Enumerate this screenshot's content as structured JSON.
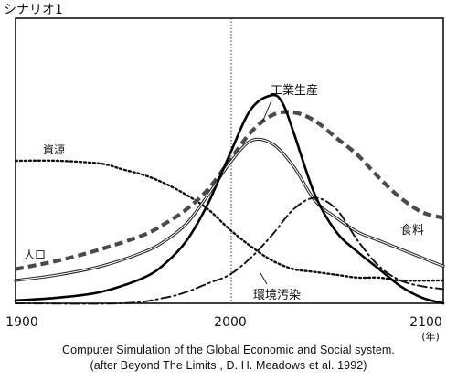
{
  "chart_data": {
    "type": "line",
    "title": "シナリオ1",
    "xlabel": "",
    "ylabel": "",
    "x_unit": "(年)",
    "xlim": [
      1900,
      2100
    ],
    "ylim": [
      0,
      1
    ],
    "x_ticks": [
      "1900",
      "2000",
      "2100"
    ],
    "reference_line_x": 2000,
    "grid": false,
    "series": [
      {
        "name": "資源",
        "style": "dotted",
        "x": [
          1900,
          1920,
          1940,
          1950,
          1960,
          1970,
          1980,
          1990,
          2000,
          2010,
          2020,
          2030,
          2040,
          2050,
          2060,
          2070,
          2080,
          2100
        ],
        "y": [
          0.5,
          0.5,
          0.49,
          0.47,
          0.45,
          0.42,
          0.38,
          0.33,
          0.26,
          0.2,
          0.15,
          0.12,
          0.11,
          0.1,
          0.09,
          0.09,
          0.08,
          0.08
        ]
      },
      {
        "name": "人口",
        "style": "dashed-thick",
        "x": [
          1900,
          1920,
          1940,
          1960,
          1970,
          1980,
          1990,
          2000,
          2010,
          2020,
          2030,
          2040,
          2050,
          2060,
          2070,
          2080,
          2090,
          2100
        ],
        "y": [
          0.12,
          0.15,
          0.19,
          0.24,
          0.28,
          0.33,
          0.4,
          0.5,
          0.6,
          0.66,
          0.67,
          0.64,
          0.58,
          0.52,
          0.44,
          0.37,
          0.32,
          0.3
        ]
      },
      {
        "name": "食料",
        "style": "double-line",
        "x": [
          1900,
          1920,
          1940,
          1960,
          1970,
          1980,
          1990,
          2000,
          2010,
          2020,
          2030,
          2040,
          2050,
          2060,
          2070,
          2080,
          2090,
          2100
        ],
        "y": [
          0.08,
          0.1,
          0.13,
          0.18,
          0.22,
          0.28,
          0.38,
          0.49,
          0.57,
          0.56,
          0.48,
          0.36,
          0.3,
          0.25,
          0.22,
          0.19,
          0.16,
          0.13
        ]
      },
      {
        "name": "工業生産",
        "style": "solid-thick",
        "x": [
          1900,
          1920,
          1940,
          1960,
          1970,
          1980,
          1990,
          2000,
          2010,
          2020,
          2025,
          2030,
          2040,
          2050,
          2060,
          2070,
          2080,
          2090,
          2100
        ],
        "y": [
          0.01,
          0.02,
          0.04,
          0.09,
          0.14,
          0.22,
          0.35,
          0.52,
          0.68,
          0.73,
          0.7,
          0.6,
          0.38,
          0.25,
          0.18,
          0.12,
          0.06,
          0.02,
          0.0
        ]
      },
      {
        "name": "環境汚染",
        "style": "dash-dot",
        "x": [
          1900,
          1950,
          1970,
          1980,
          1990,
          2000,
          2010,
          2020,
          2030,
          2040,
          2050,
          2060,
          2070,
          2080,
          2090,
          2100
        ],
        "y": [
          0.0,
          0.0,
          0.02,
          0.04,
          0.07,
          0.1,
          0.16,
          0.24,
          0.33,
          0.37,
          0.33,
          0.22,
          0.13,
          0.08,
          0.06,
          0.05
        ]
      }
    ]
  },
  "caption": {
    "line1": "Computer Simulation of the Global Economic and Social system.",
    "line2": "(after Beyond The Limits , D. H. Meadows et al. 1992)"
  }
}
